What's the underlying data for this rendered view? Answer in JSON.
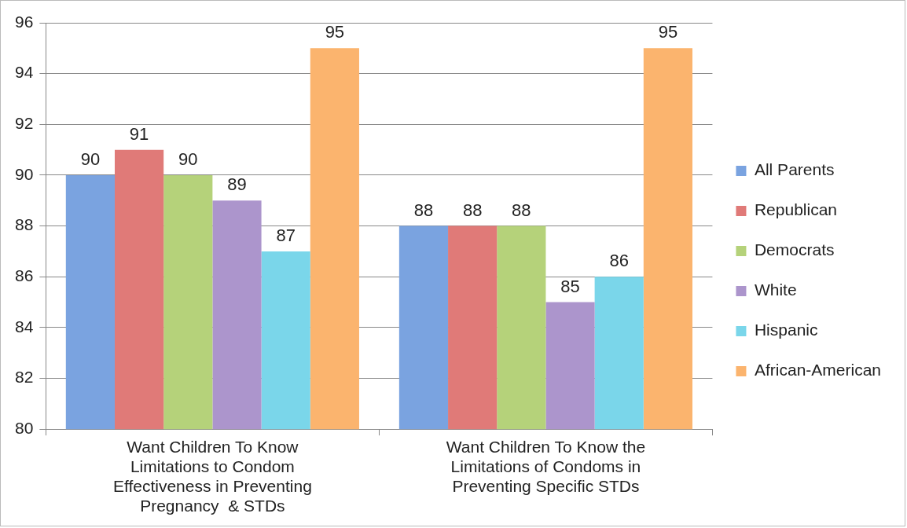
{
  "chart_data": {
    "type": "bar",
    "categories": [
      "Want Children To Know Limitations to Condom Effectiveness in Preventing Pregnancy  & STDs",
      "Want Children To Know the Limitations of Condoms in Preventing Specific STDs"
    ],
    "series": [
      {
        "name": "All Parents",
        "color": "#7aa3e0",
        "values": [
          90,
          88
        ]
      },
      {
        "name": "Republican",
        "color": "#e07a78",
        "values": [
          91,
          88
        ]
      },
      {
        "name": "Democrats",
        "color": "#b5d27a",
        "values": [
          90,
          88
        ]
      },
      {
        "name": "White",
        "color": "#ac95cc",
        "values": [
          89,
          85
        ]
      },
      {
        "name": "Hispanic",
        "color": "#7ad6ea",
        "values": [
          87,
          86
        ]
      },
      {
        "name": "African-American",
        "color": "#fbb46e",
        "values": [
          95,
          95
        ]
      }
    ],
    "ylim": [
      80,
      96
    ],
    "yticks": [
      80,
      82,
      84,
      86,
      88,
      90,
      92,
      94,
      96
    ],
    "grid": "y",
    "legend": "right",
    "data_labels": true
  }
}
